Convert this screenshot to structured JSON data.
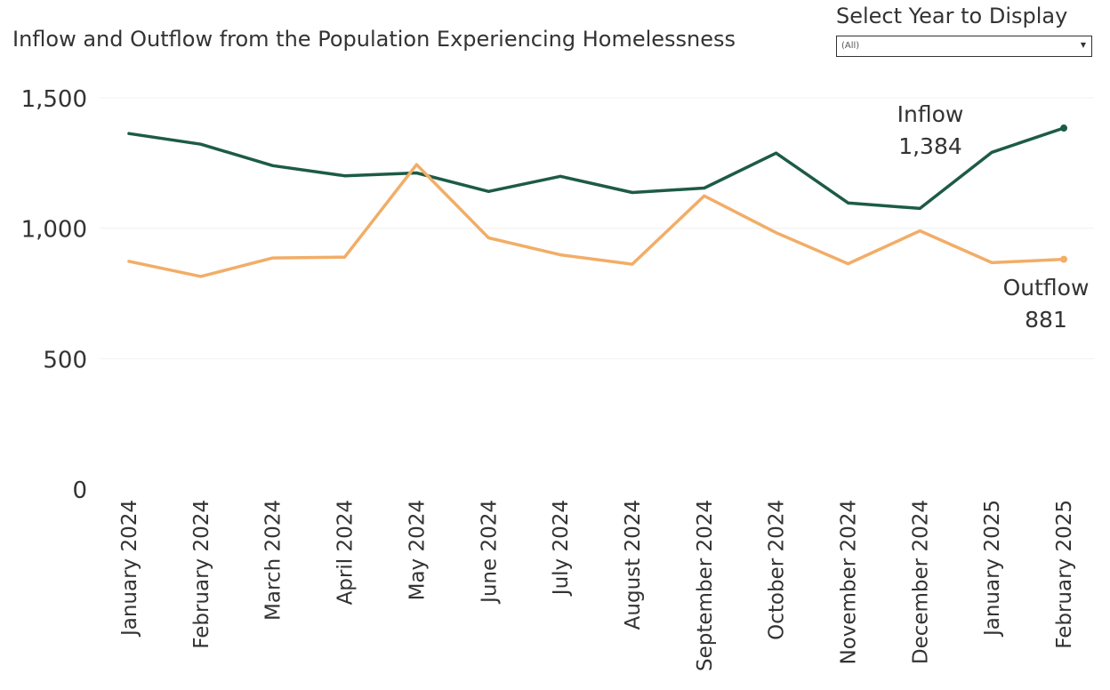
{
  "title": "Inflow and Outflow from the Population Experiencing Homelessness",
  "filter": {
    "label": "Select Year to Display",
    "value": "(All)"
  },
  "chart_data": {
    "type": "line",
    "categories": [
      "January 2024",
      "February 2024",
      "March 2024",
      "April 2024",
      "May 2024",
      "June 2024",
      "July 2024",
      "August 2024",
      "September 2024",
      "October 2024",
      "November 2024",
      "December 2024",
      "January 2025",
      "February 2025"
    ],
    "series": [
      {
        "name": "Inflow",
        "color": "#1d5b45",
        "values": [
          1363,
          1322,
          1240,
          1201,
          1212,
          1141,
          1199,
          1137,
          1154,
          1288,
          1097,
          1076,
          1291,
          1384
        ],
        "end_label": [
          "Inflow",
          "1,384"
        ]
      },
      {
        "name": "Outflow",
        "color": "#f2ad67",
        "values": [
          873,
          815,
          886,
          889,
          1244,
          963,
          898,
          862,
          1124,
          983,
          864,
          990,
          868,
          881
        ],
        "end_label": [
          "Outflow",
          "881"
        ]
      }
    ],
    "ylim": [
      0,
      1500
    ],
    "yticks": [
      0,
      500,
      1000,
      1500
    ],
    "ytick_labels": [
      "0",
      "500",
      "1,000",
      "1,500"
    ],
    "grid": true,
    "xlabel": "",
    "ylabel": ""
  }
}
